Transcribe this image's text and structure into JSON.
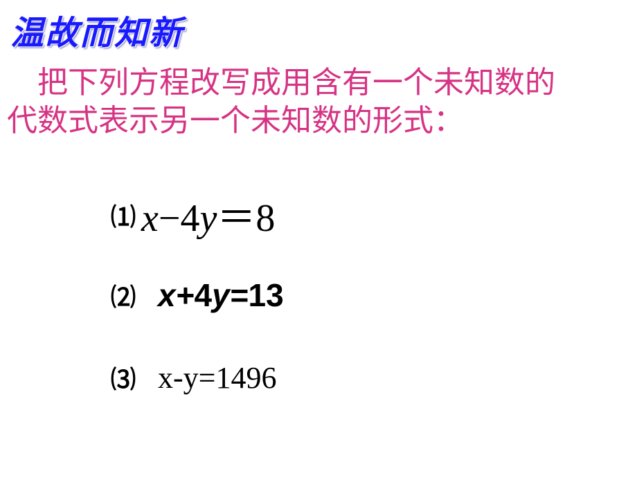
{
  "title": "温故而知新",
  "instruction_line1": "　把下列方程改写成用含有一个未知数的",
  "instruction_line2": "代数式表示另一个未知数的形式：",
  "equations": {
    "eq1": {
      "label": "⑴",
      "lhs_var1": "x",
      "op": "−",
      "coef": "4",
      "lhs_var2": "y",
      "eq": "＝",
      "rhs": "8"
    },
    "eq2": {
      "label": "⑵",
      "text_before": "x+",
      "coef": "4",
      "text_after": "y=",
      "rhs": "13"
    },
    "eq3": {
      "label": "⑶",
      "text": "x-y=1496"
    }
  },
  "colors": {
    "title": "#1a1aff",
    "instruction": "#d63384",
    "body": "#000000",
    "background": "#ffffff"
  },
  "fonts": {
    "title_size": 48,
    "instruction_size": 44,
    "eq1_size": 56,
    "eq2_size": 46,
    "eq3_size": 44,
    "label_size": 36
  }
}
